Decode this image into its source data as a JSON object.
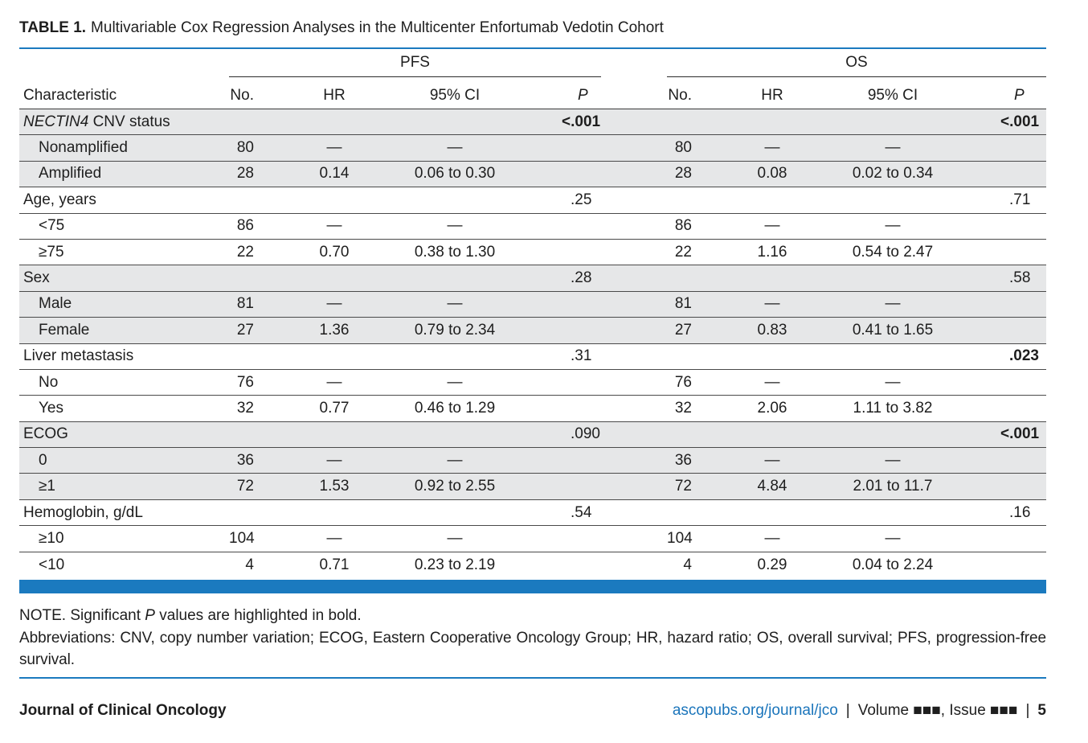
{
  "title": {
    "label": "TABLE 1.",
    "text": "Multivariable Cox Regression Analyses in the Multicenter Enfortumab Vedotin Cohort"
  },
  "table": {
    "group_headers": {
      "pfs": "PFS",
      "os": "OS"
    },
    "column_headers": {
      "characteristic": "Characteristic",
      "pfs": {
        "no": "No.",
        "hr": "HR",
        "ci": "95% CI",
        "p": "P"
      },
      "os": {
        "no": "No.",
        "hr": "HR",
        "ci": "95% CI",
        "p": "P"
      }
    },
    "variables": [
      {
        "name_italic": "NECTIN4",
        "name": "CNV status",
        "pfs_p": "<.001",
        "pfs_p_significant": true,
        "os_p": "<.001",
        "os_p_significant": true,
        "levels": [
          {
            "label": "Nonamplified",
            "pfs": {
              "no": "80",
              "hr": "—",
              "ci": "—"
            },
            "os": {
              "no": "80",
              "hr": "—",
              "ci": "—"
            }
          },
          {
            "label": "Amplified",
            "pfs": {
              "no": "28",
              "hr": "0.14",
              "ci": "0.06 to 0.30"
            },
            "os": {
              "no": "28",
              "hr": "0.08",
              "ci": "0.02 to 0.34"
            }
          }
        ]
      },
      {
        "name": "Age, years",
        "pfs_p": ".25",
        "pfs_p_significant": false,
        "os_p": ".71",
        "os_p_significant": false,
        "levels": [
          {
            "label": "<75",
            "pfs": {
              "no": "86",
              "hr": "—",
              "ci": "—"
            },
            "os": {
              "no": "86",
              "hr": "—",
              "ci": "—"
            }
          },
          {
            "label": "≥75",
            "pfs": {
              "no": "22",
              "hr": "0.70",
              "ci": "0.38 to 1.30"
            },
            "os": {
              "no": "22",
              "hr": "1.16",
              "ci": "0.54 to 2.47"
            }
          }
        ]
      },
      {
        "name": "Sex",
        "pfs_p": ".28",
        "pfs_p_significant": false,
        "os_p": ".58",
        "os_p_significant": false,
        "levels": [
          {
            "label": "Male",
            "pfs": {
              "no": "81",
              "hr": "—",
              "ci": "—"
            },
            "os": {
              "no": "81",
              "hr": "—",
              "ci": "—"
            }
          },
          {
            "label": "Female",
            "pfs": {
              "no": "27",
              "hr": "1.36",
              "ci": "0.79 to 2.34"
            },
            "os": {
              "no": "27",
              "hr": "0.83",
              "ci": "0.41 to 1.65"
            }
          }
        ]
      },
      {
        "name": "Liver metastasis",
        "pfs_p": ".31",
        "pfs_p_significant": false,
        "os_p": ".023",
        "os_p_significant": true,
        "levels": [
          {
            "label": "No",
            "pfs": {
              "no": "76",
              "hr": "—",
              "ci": "—"
            },
            "os": {
              "no": "76",
              "hr": "—",
              "ci": "—"
            }
          },
          {
            "label": "Yes",
            "pfs": {
              "no": "32",
              "hr": "0.77",
              "ci": "0.46 to 1.29"
            },
            "os": {
              "no": "32",
              "hr": "2.06",
              "ci": "1.11 to 3.82"
            }
          }
        ]
      },
      {
        "name": "ECOG",
        "pfs_p": ".090",
        "pfs_p_significant": false,
        "os_p": "<.001",
        "os_p_significant": true,
        "levels": [
          {
            "label": "0",
            "pfs": {
              "no": "36",
              "hr": "—",
              "ci": "—"
            },
            "os": {
              "no": "36",
              "hr": "—",
              "ci": "—"
            }
          },
          {
            "label": "≥1",
            "pfs": {
              "no": "72",
              "hr": "1.53",
              "ci": "0.92 to 2.55"
            },
            "os": {
              "no": "72",
              "hr": "4.84",
              "ci": "2.01 to 11.7"
            }
          }
        ]
      },
      {
        "name": "Hemoglobin, g/dL",
        "pfs_p": ".54",
        "pfs_p_significant": false,
        "os_p": ".16",
        "os_p_significant": false,
        "levels": [
          {
            "label": "≥10",
            "pfs": {
              "no": "104",
              "hr": "—",
              "ci": "—"
            },
            "os": {
              "no": "104",
              "hr": "—",
              "ci": "—"
            }
          },
          {
            "label": "<10",
            "pfs": {
              "no": "4",
              "hr": "0.71",
              "ci": "0.23 to 2.19"
            },
            "os": {
              "no": "4",
              "hr": "0.29",
              "ci": "0.04 to 2.24"
            }
          }
        ]
      }
    ]
  },
  "notes": {
    "note_before": "NOTE. Significant",
    "note_italic": "P",
    "note_after": "values are highlighted in bold.",
    "abbreviations": "Abbreviations: CNV, copy number variation; ECOG, Eastern Cooperative Oncology Group; HR, hazard ratio; OS, overall survival; PFS, progression-free survival."
  },
  "footer": {
    "journal": "Journal of Clinical Oncology",
    "url": "ascopubs.org/journal/jco",
    "separator": "|",
    "volume_issue": "Volume ■■■, Issue ■■■",
    "page": "5"
  },
  "colors": {
    "accent_blue": "#1b7abf",
    "row_shade": "#e6e7e8",
    "link_blue": "#1b75bb"
  }
}
